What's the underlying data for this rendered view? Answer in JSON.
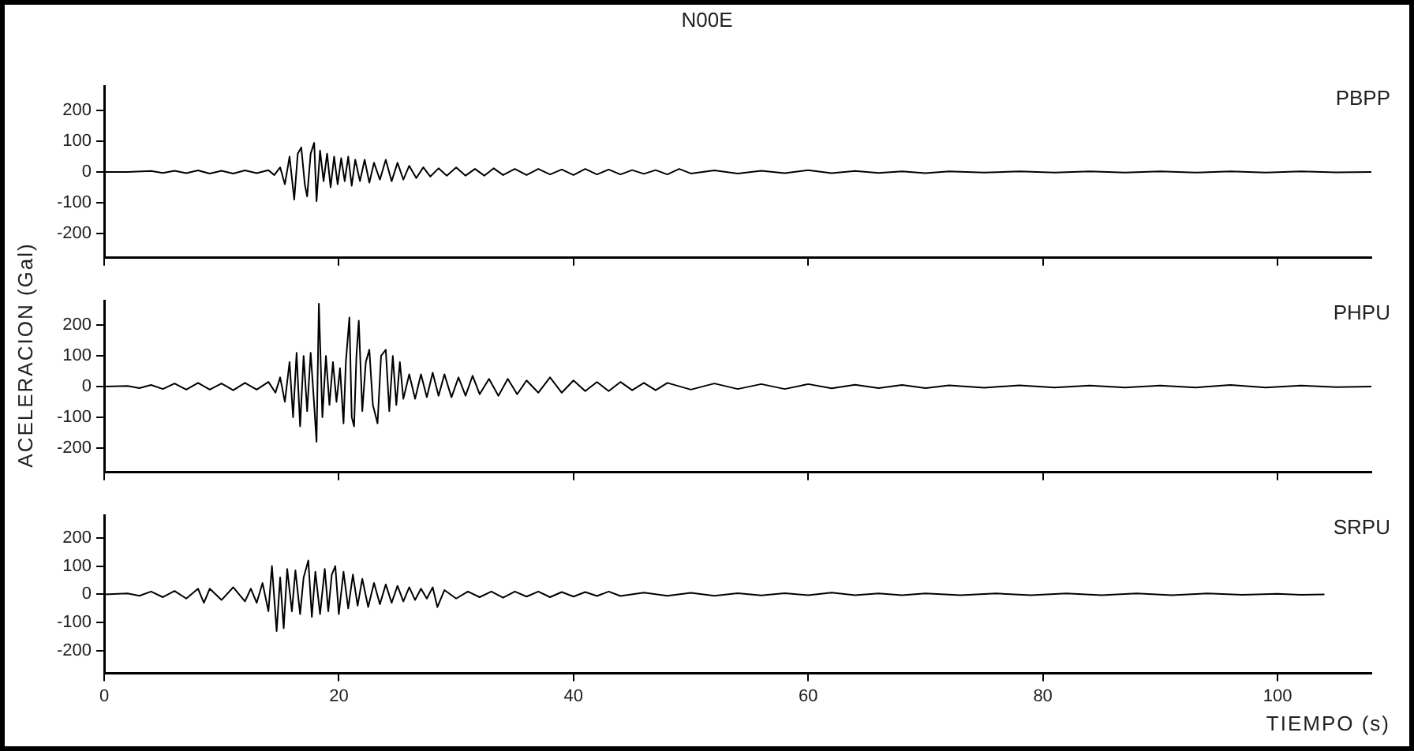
{
  "chart_data": [
    {
      "type": "line",
      "title": "N00E",
      "xlim": [
        0,
        108
      ],
      "xticks": [
        0,
        20,
        40,
        60,
        80,
        100
      ],
      "ylim": [
        -280,
        280
      ],
      "yticks": [
        -200,
        -100,
        0,
        100,
        200
      ],
      "tick_labels": "y",
      "series": [
        {
          "name": "PBPP",
          "color": "#000000",
          "x": [
            0,
            2,
            4,
            5,
            6,
            7,
            8,
            9,
            10,
            11,
            12,
            13,
            14,
            14.5,
            15,
            15.4,
            15.8,
            16.2,
            16.5,
            16.8,
            17.1,
            17.3,
            17.6,
            17.9,
            18.1,
            18.4,
            18.7,
            19,
            19.3,
            19.6,
            19.9,
            20.2,
            20.5,
            20.8,
            21.1,
            21.4,
            21.8,
            22.2,
            22.6,
            23,
            23.5,
            24,
            24.5,
            25,
            25.5,
            26,
            26.6,
            27.2,
            27.8,
            28.5,
            29.2,
            30,
            30.8,
            31.6,
            32.4,
            33.2,
            34,
            35,
            36,
            37,
            38,
            39,
            40,
            41,
            42,
            43,
            44,
            45,
            46,
            47,
            48,
            49,
            50,
            52,
            54,
            56,
            58,
            60,
            62,
            64,
            66,
            68,
            70,
            72,
            75,
            78,
            81,
            84,
            87,
            90,
            93,
            96,
            99,
            102,
            105,
            108
          ],
          "values": [
            0,
            0,
            3,
            -3,
            4,
            -4,
            5,
            -5,
            4,
            -5,
            5,
            -4,
            6,
            -10,
            15,
            -40,
            50,
            -90,
            60,
            80,
            -40,
            -80,
            60,
            95,
            -95,
            70,
            -30,
            60,
            -50,
            50,
            -40,
            45,
            -30,
            50,
            -45,
            40,
            -30,
            40,
            -35,
            30,
            -25,
            40,
            -30,
            30,
            -25,
            20,
            -20,
            15,
            -15,
            12,
            -12,
            15,
            -12,
            10,
            -12,
            12,
            -10,
            10,
            -10,
            10,
            -8,
            8,
            -10,
            10,
            -8,
            8,
            -8,
            6,
            -6,
            6,
            -8,
            10,
            -5,
            5,
            -5,
            4,
            -4,
            6,
            -4,
            3,
            -3,
            2,
            -4,
            2,
            -2,
            2,
            -2,
            2,
            -2,
            2,
            -2,
            2,
            -2,
            2,
            -1,
            0
          ]
        }
      ]
    },
    {
      "type": "line",
      "ylabel": "ACELERACION (Gal)",
      "xlim": [
        0,
        108
      ],
      "xticks": [
        0,
        20,
        40,
        60,
        80,
        100
      ],
      "ylim": [
        -280,
        280
      ],
      "yticks": [
        -200,
        -100,
        0,
        100,
        200
      ],
      "tick_labels": "y",
      "series": [
        {
          "name": "PHPU",
          "color": "#000000",
          "x": [
            0,
            2,
            3,
            4,
            5,
            6,
            7,
            8,
            9,
            10,
            11,
            12,
            13,
            14,
            14.6,
            15,
            15.4,
            15.8,
            16.1,
            16.4,
            16.7,
            17,
            17.3,
            17.6,
            17.9,
            18.1,
            18.3,
            18.6,
            18.9,
            19.2,
            19.5,
            19.8,
            20.1,
            20.4,
            20.6,
            20.9,
            21.1,
            21.3,
            21.5,
            21.7,
            22,
            22.3,
            22.6,
            22.9,
            23.3,
            23.6,
            24,
            24.3,
            24.6,
            24.9,
            25.2,
            25.5,
            26,
            26.5,
            27,
            27.5,
            28,
            28.5,
            29,
            29.6,
            30.2,
            30.8,
            31.4,
            32,
            32.8,
            33.6,
            34.4,
            35.2,
            36,
            37,
            38,
            39,
            40,
            41,
            42,
            43,
            44,
            45,
            46,
            47,
            48,
            50,
            52,
            54,
            56,
            58,
            60,
            62,
            64,
            66,
            68,
            70,
            72,
            75,
            78,
            81,
            84,
            87,
            90,
            93,
            96,
            99,
            102,
            105,
            108
          ],
          "values": [
            0,
            2,
            -5,
            5,
            -8,
            10,
            -10,
            12,
            -10,
            10,
            -12,
            12,
            -10,
            15,
            -20,
            30,
            -50,
            80,
            -100,
            110,
            -130,
            100,
            -80,
            110,
            -60,
            -180,
            270,
            -100,
            100,
            -60,
            80,
            -50,
            60,
            -120,
            80,
            225,
            -100,
            -130,
            100,
            215,
            -80,
            80,
            120,
            -60,
            -120,
            100,
            120,
            -80,
            100,
            -60,
            80,
            -40,
            40,
            -40,
            40,
            -35,
            45,
            -30,
            40,
            -35,
            30,
            -30,
            35,
            -25,
            25,
            -30,
            25,
            -25,
            20,
            -20,
            30,
            -20,
            20,
            -15,
            15,
            -15,
            15,
            -12,
            12,
            -12,
            12,
            -10,
            10,
            -8,
            8,
            -8,
            8,
            -6,
            6,
            -5,
            5,
            -5,
            4,
            -4,
            4,
            -3,
            3,
            -3,
            3,
            -3,
            5,
            -3,
            3,
            -2,
            0
          ]
        }
      ]
    },
    {
      "type": "line",
      "xlabel": "TIEMPO (s)",
      "xlim": [
        0,
        108
      ],
      "xticks": [
        0,
        20,
        40,
        60,
        80,
        100
      ],
      "ylim": [
        -280,
        280
      ],
      "yticks": [
        -200,
        -100,
        0,
        100,
        200
      ],
      "series": [
        {
          "name": "SRPU",
          "color": "#000000",
          "x": [
            0,
            2,
            3,
            4,
            5,
            6,
            7,
            8,
            8.5,
            9,
            10,
            11,
            12,
            12.5,
            13,
            13.5,
            14,
            14.3,
            14.7,
            15,
            15.3,
            15.6,
            16,
            16.3,
            16.7,
            17,
            17.4,
            17.7,
            18,
            18.4,
            18.8,
            19.1,
            19.4,
            19.7,
            20,
            20.4,
            20.8,
            21.2,
            21.6,
            22,
            22.5,
            23,
            23.5,
            24,
            24.5,
            25,
            25.5,
            26,
            26.5,
            27,
            27.5,
            28,
            28.4,
            29,
            30,
            31,
            32,
            33,
            34,
            35,
            36,
            37,
            38,
            39,
            40,
            41,
            42,
            43,
            44,
            46,
            48,
            50,
            52,
            54,
            56,
            58,
            60,
            62,
            64,
            66,
            68,
            70,
            73,
            76,
            79,
            82,
            85,
            88,
            91,
            94,
            97,
            100,
            102,
            104
          ],
          "values": [
            0,
            3,
            -5,
            10,
            -10,
            12,
            -15,
            20,
            -30,
            20,
            -20,
            25,
            -25,
            20,
            -30,
            40,
            -60,
            100,
            -130,
            60,
            -120,
            90,
            -60,
            85,
            -70,
            60,
            120,
            -80,
            80,
            -70,
            90,
            -60,
            70,
            100,
            -70,
            80,
            -50,
            70,
            -40,
            55,
            -45,
            40,
            -35,
            35,
            -30,
            30,
            -25,
            25,
            -20,
            20,
            -15,
            25,
            -45,
            15,
            -15,
            10,
            -10,
            10,
            -12,
            10,
            -8,
            10,
            -10,
            8,
            -8,
            8,
            -6,
            10,
            -6,
            6,
            -5,
            5,
            -5,
            4,
            -4,
            4,
            -3,
            6,
            -3,
            3,
            -3,
            3,
            -3,
            3,
            -3,
            3,
            -3,
            3,
            -3,
            3,
            -2,
            2,
            -2,
            0
          ]
        }
      ]
    }
  ]
}
